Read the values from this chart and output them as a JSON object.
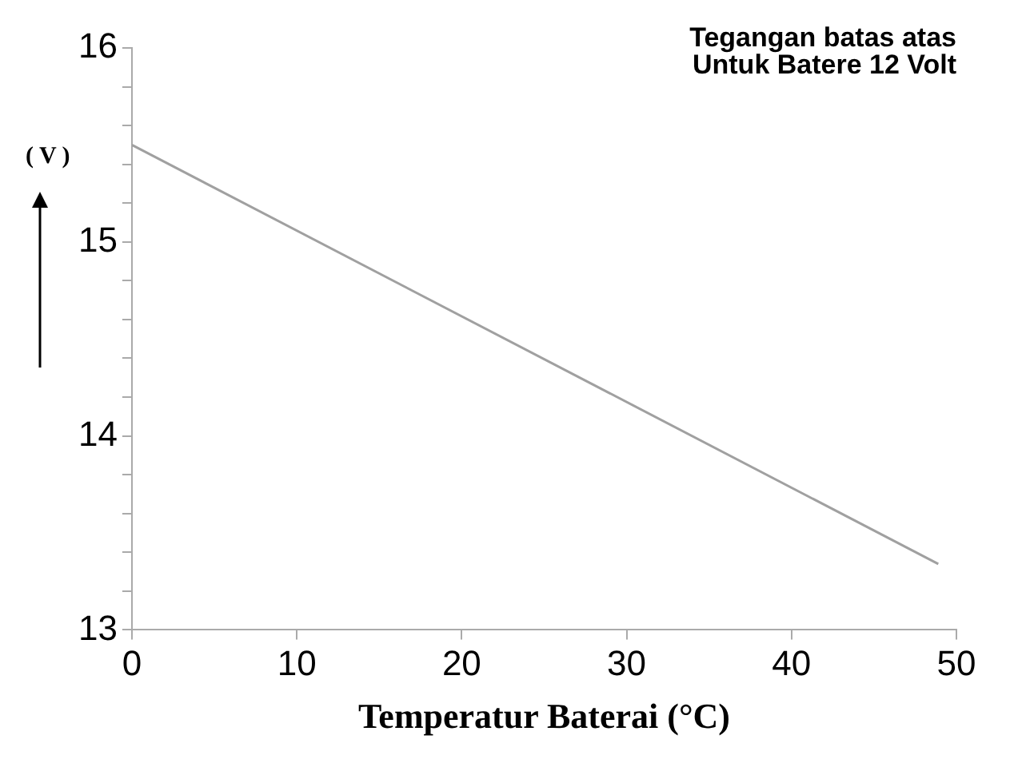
{
  "chart_data": {
    "type": "line",
    "title": "Tegangan batas atas\nUntuk Batere 12 Volt",
    "xlabel": "Temperatur Baterai (°C)",
    "ylabel": "( V )",
    "x": [
      0,
      48.9
    ],
    "series": [
      {
        "color": "#a0a0a0",
        "values": [
          15.5,
          13.34
        ]
      }
    ],
    "xlim": [
      0,
      50
    ],
    "xticks": [
      0,
      10,
      20,
      30,
      40,
      50
    ],
    "ylim": [
      13,
      16
    ],
    "yticks": [
      13,
      {
        "value": 13.2,
        "label": null
      },
      {
        "value": 13.4,
        "label": null
      },
      {
        "value": 13.6,
        "label": null
      },
      {
        "value": 13.8,
        "label": null
      },
      14,
      {
        "value": 14.2,
        "label": null
      },
      {
        "value": 14.4,
        "label": null
      },
      {
        "value": 14.6,
        "label": null
      },
      {
        "value": 14.8,
        "label": null
      },
      15,
      {
        "value": 15.2,
        "label": null
      },
      {
        "value": 15.4,
        "label": null
      },
      {
        "value": 15.6,
        "label": null
      },
      {
        "value": 15.8,
        "label": null
      },
      16
    ],
    "grid": false,
    "legend": false,
    "marker": "none",
    "line_style": "solid"
  }
}
